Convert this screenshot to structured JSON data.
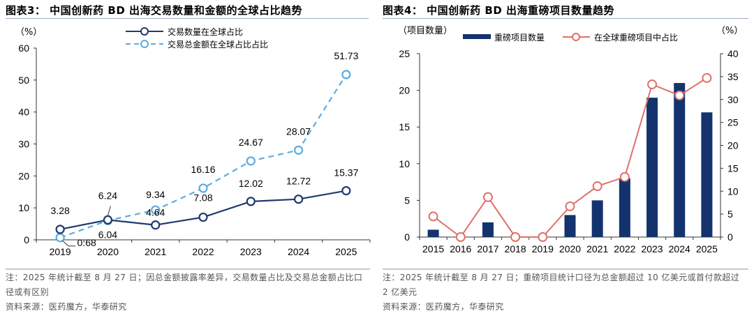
{
  "chart_data": [
    {
      "id": "fig3",
      "type": "line",
      "title": "图表3：  中国创新药 BD 出海交易数量和金额的全球占比趋势",
      "ylabel": "（%）",
      "xlabel": "",
      "categories": [
        "2019",
        "2020",
        "2021",
        "2022",
        "2023",
        "2024",
        "2025"
      ],
      "ylim": [
        0,
        60
      ],
      "yticks": [
        0,
        10,
        20,
        30,
        40,
        50,
        60
      ],
      "grid": false,
      "legend_position": "top-center",
      "series": [
        {
          "name": "交易数量在全球占比",
          "style": "solid",
          "color": "#1f3a6e",
          "values": [
            3.28,
            6.24,
            4.64,
            7.08,
            12.02,
            12.72,
            15.37
          ],
          "labels": [
            "3.28",
            "6.24",
            "4.64",
            "7.08",
            "12.02",
            "12.72",
            "15.37"
          ]
        },
        {
          "name": "交易总金额在全球占比占比",
          "style": "dashed",
          "color": "#5aade0",
          "values": [
            0.68,
            6.04,
            9.34,
            16.16,
            24.67,
            28.07,
            51.73
          ],
          "labels": [
            "0.68",
            "6.04",
            "9.34",
            "16.16",
            "24.67",
            "28.07",
            "51.73"
          ]
        }
      ],
      "notes": [
        "注：2025 年统计截至 8 月 27 日；因总金额披露率差异，交易数量占比及交易总金额占比口径或有区别",
        "资料来源：医药魔方，华泰研究"
      ]
    },
    {
      "id": "fig4",
      "type": "bar",
      "title": "图表4：  中国创新药 BD 出海重磅项目数量趋势",
      "ylabel": "（项目数量）",
      "ylabel_right": "（%）",
      "categories": [
        "2015",
        "2016",
        "2017",
        "2018",
        "2019",
        "2020",
        "2021",
        "2022",
        "2023",
        "2024",
        "2025"
      ],
      "ylim": [
        0,
        25
      ],
      "yticks": [
        0,
        5,
        10,
        15,
        20,
        25
      ],
      "ylim_right": [
        0,
        40
      ],
      "yticks_right": [
        0,
        5,
        10,
        15,
        20,
        25,
        30,
        35,
        40
      ],
      "grid": false,
      "legend_position": "top-center",
      "series": [
        {
          "name": "重磅项目数量",
          "type": "bar",
          "axis": "left",
          "color": "#14336e",
          "values": [
            1,
            0,
            2,
            0,
            0,
            3,
            5,
            8,
            19,
            21,
            17
          ]
        },
        {
          "name": "在全球重磅项目中占比",
          "type": "line",
          "axis": "right",
          "color": "#e0706a",
          "values": [
            4.5,
            0,
            8.7,
            0,
            0,
            6.7,
            11.1,
            13.1,
            33.3,
            30.9,
            34.7
          ]
        }
      ],
      "notes": [
        "注：2025 年统计截至 8 月 27 日；重磅项目统计口径为总金额超过 10 亿美元或首付款超过 2 亿美元",
        "资料来源：医药魔方，华泰研究"
      ]
    }
  ]
}
